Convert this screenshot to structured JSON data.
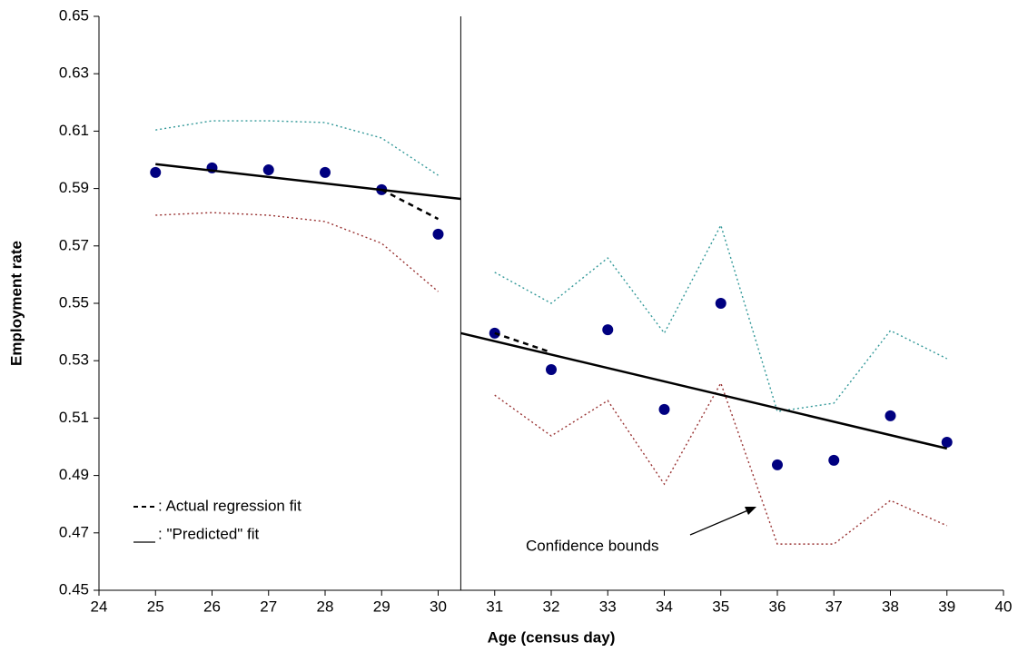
{
  "chart_data": {
    "type": "scatter",
    "x_label": "Age (census day)",
    "y_label": "Employment rate",
    "xlim": [
      24,
      40
    ],
    "xticks": [
      24,
      25,
      26,
      27,
      28,
      29,
      30,
      31,
      32,
      33,
      34,
      35,
      36,
      37,
      38,
      39,
      40
    ],
    "ylim": [
      0.45,
      0.65
    ],
    "yticks": [
      0.45,
      0.47,
      0.49,
      0.51,
      0.53,
      0.55,
      0.57,
      0.59,
      0.61,
      0.63,
      0.65
    ],
    "cutoff_x": 30.4,
    "series": [
      {
        "style": "markers",
        "color": "#000080",
        "x": [
          25,
          26,
          27,
          28,
          29,
          30,
          31,
          32,
          33,
          34,
          35,
          36,
          37,
          38,
          39
        ],
        "values": [
          0.5956,
          0.5972,
          0.5965,
          0.5956,
          0.5896,
          0.5741,
          0.5396,
          0.5269,
          0.5408,
          0.513,
          0.55,
          0.4937,
          0.4953,
          0.5108,
          0.5016
        ]
      },
      {
        "style": "dotted",
        "color": "#339999",
        "x": [
          25,
          26,
          27,
          28,
          29,
          30
        ],
        "values": [
          0.6104,
          0.6136,
          0.6136,
          0.613,
          0.6076,
          0.5946
        ]
      },
      {
        "style": "dotted",
        "color": "#339999",
        "x": [
          31,
          32,
          33,
          34,
          35,
          36,
          37,
          38,
          39
        ],
        "values": [
          0.5608,
          0.55,
          0.5658,
          0.5396,
          0.5772,
          0.5123,
          0.5152,
          0.5405,
          0.5307
        ]
      },
      {
        "style": "dotted",
        "color": "#993333",
        "x": [
          25,
          26,
          27,
          28,
          29,
          30
        ],
        "values": [
          0.5807,
          0.5816,
          0.5807,
          0.5785,
          0.5709,
          0.5541
        ]
      },
      {
        "style": "dotted",
        "color": "#993333",
        "x": [
          31,
          32,
          33,
          34,
          35,
          36,
          37,
          38,
          39
        ],
        "values": [
          0.518,
          0.5038,
          0.5161,
          0.487,
          0.5222,
          0.4661,
          0.4661,
          0.4813,
          0.4725
        ]
      },
      {
        "style": "solid",
        "color": "#000000",
        "x": [
          25,
          30.4
        ],
        "values": [
          0.5985,
          0.5864
        ]
      },
      {
        "style": "solid",
        "color": "#000000",
        "x": [
          30.4,
          39
        ],
        "values": [
          0.5396,
          0.4994
        ]
      },
      {
        "style": "dashed",
        "color": "#000000",
        "x": [
          29,
          30
        ],
        "values": [
          0.5896,
          0.5794
        ]
      },
      {
        "style": "dashed",
        "color": "#000000",
        "x": [
          31,
          32
        ],
        "values": [
          0.5396,
          0.5329
        ]
      }
    ],
    "legend": [
      ": Actual regression fit",
      ": \"Predicted\" fit"
    ],
    "annotation": "Confidence bounds"
  }
}
